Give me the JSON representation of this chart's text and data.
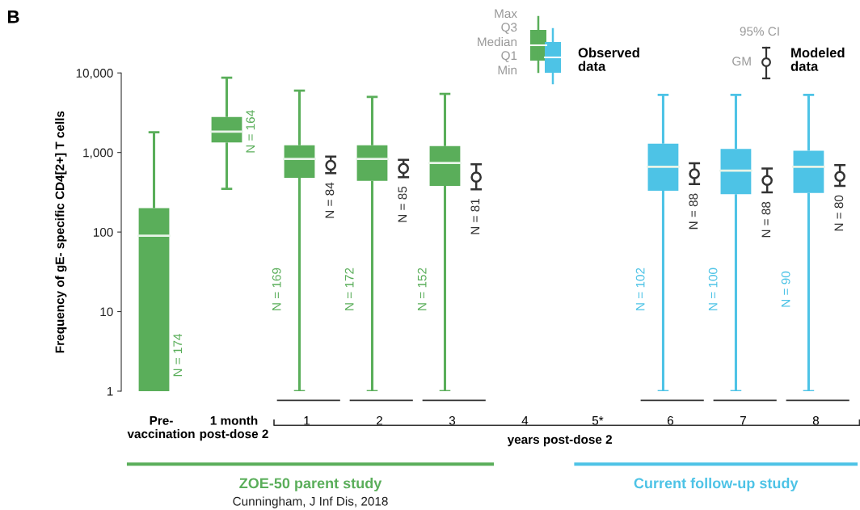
{
  "chart_data": {
    "type": "box",
    "ylabel": "Frequency of gE- specific CD4[2+] T cells",
    "xlabel": "years post-dose 2",
    "categories": [
      "Pre-\nvaccination",
      "1 month\npost-dose 2",
      "1",
      "2",
      "3",
      "4",
      "5*",
      "6",
      "7",
      "8"
    ],
    "log": "y",
    "ylim": [
      1,
      10000
    ],
    "yticks": [
      1,
      10,
      100,
      {
        "value": 1000,
        "label": "1,000"
      },
      {
        "value": 10000,
        "label": "10,000"
      }
    ],
    "grid": false,
    "legend": "top",
    "series": [
      {
        "name": "Observed data",
        "type": "box",
        "colors": [
          "#5aae5a",
          "#5aae5a",
          "#5aae5a",
          "#5aae5a",
          "#5aae5a",
          null,
          null,
          "#4dc3e6",
          "#4dc3e6",
          "#4dc3e6"
        ],
        "boxes": [
          {
            "low": 1,
            "q1": 1,
            "median": 90,
            "q3": 200,
            "high": 1800
          },
          {
            "low": 350,
            "q1": 1340,
            "median": 1830,
            "q3": 2800,
            "high": 8700
          },
          {
            "low": 1,
            "q1": 480,
            "median": 830,
            "q3": 1230,
            "high": 6000
          },
          {
            "low": 1,
            "q1": 440,
            "median": 830,
            "q3": 1230,
            "high": 5000
          },
          {
            "low": 1,
            "q1": 380,
            "median": 740,
            "q3": 1200,
            "high": 5450
          },
          null,
          null,
          {
            "low": 1,
            "q1": 330,
            "median": 660,
            "q3": 1290,
            "high": 5300
          },
          {
            "low": 1,
            "q1": 300,
            "median": 590,
            "q3": 1110,
            "high": 5300
          },
          {
            "low": 1,
            "q1": 310,
            "median": 660,
            "q3": 1050,
            "high": 5300
          }
        ]
      },
      {
        "name": "Modeled data",
        "type": "scatter",
        "color": "#333333",
        "marker": "circle",
        "values": [
          null,
          null,
          690,
          630,
          490,
          null,
          null,
          540,
          445,
          500
        ],
        "errors": [
          null,
          null,
          [
            550,
            890
          ],
          [
            490,
            810
          ],
          [
            345,
            710
          ],
          null,
          null,
          [
            400,
            730
          ],
          [
            315,
            630
          ],
          [
            380,
            695
          ]
        ]
      }
    ],
    "annotations": [
      "B",
      "ZOE-50 parent study",
      "Current follow-up study",
      "Cunningham, J Inf Dis, 2018",
      "Max",
      "Q3",
      "Median",
      "Q1",
      "Min",
      "95% CI",
      "GM",
      "N = 174",
      "N = 164",
      "N = 169",
      "N = 84",
      "N = 172",
      "N = 85",
      "N = 152",
      "N = 81",
      "N = 102",
      "N = 88",
      "N = 100",
      "N = 88",
      "N = 90",
      "N = 80"
    ]
  }
}
